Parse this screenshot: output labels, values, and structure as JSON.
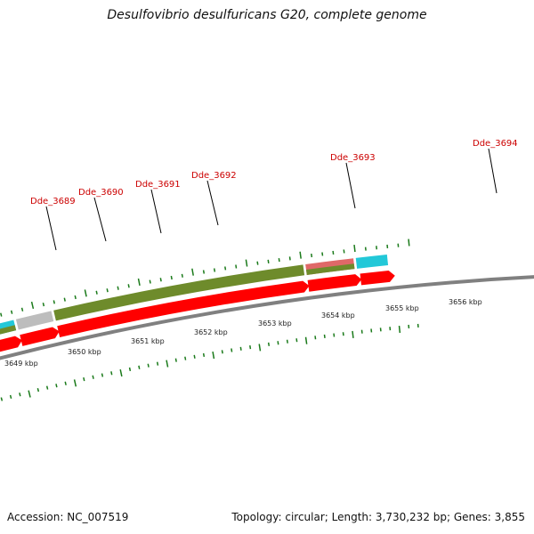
{
  "title": "Desulfovibrio desulfuricans G20, complete genome",
  "footer": {
    "accession": "Accession: NC_007519",
    "summary": "Topology: circular; Length: 3,730,232 bp; Genes: 3,855"
  },
  "colors": {
    "gene_label": "#cc0000",
    "forward_cds": "#ff0000",
    "backbone": "#808080",
    "tick": "#1a7a1a"
  },
  "gene_labels": [
    "Dde_3689",
    "Dde_3690",
    "Dde_3691",
    "Dde_3692",
    "Dde_3693",
    "Dde_3694"
  ],
  "kbp_labels": [
    "3649 kbp",
    "3650 kbp",
    "3651 kbp",
    "3652 kbp",
    "3653 kbp",
    "3654 kbp",
    "3655 kbp",
    "3656 kbp"
  ]
}
